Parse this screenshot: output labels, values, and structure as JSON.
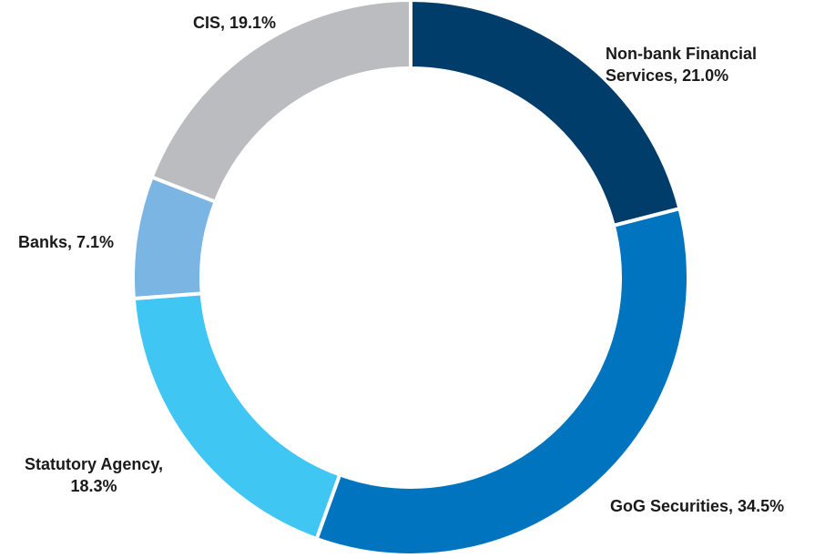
{
  "chart_data": {
    "type": "donut",
    "title": "",
    "slices": [
      {
        "name": "Non-bank Financial Services",
        "value": 21.0,
        "color": "#003d6b",
        "label_lines": [
          "Non-bank Financial",
          "Services, 21.0%"
        ]
      },
      {
        "name": "GoG Securities",
        "value": 34.5,
        "color": "#0074bf",
        "label_lines": [
          "GoG Securities, 34.5%"
        ]
      },
      {
        "name": "Statutory Agency",
        "value": 18.3,
        "color": "#3fc6f2",
        "label_lines": [
          "Statutory Agency,",
          "18.3%"
        ]
      },
      {
        "name": "Banks",
        "value": 7.1,
        "color": "#7ab5e3",
        "label_lines": [
          "Banks, 7.1%"
        ]
      },
      {
        "name": "CIS",
        "value": 19.1,
        "color": "#bbbcc0",
        "label_lines": [
          "CIS, 19.1%"
        ]
      }
    ]
  }
}
